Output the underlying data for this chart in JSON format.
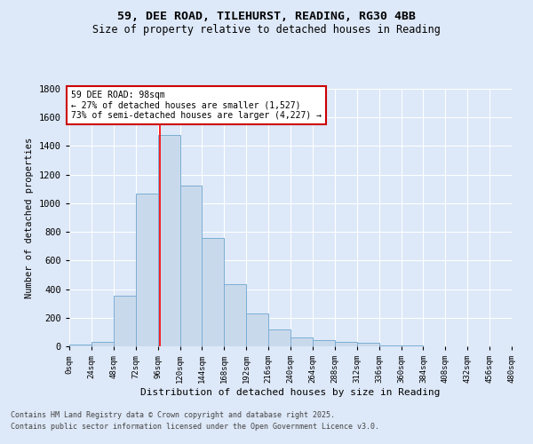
{
  "title_line1": "59, DEE ROAD, TILEHURST, READING, RG30 4BB",
  "title_line2": "Size of property relative to detached houses in Reading",
  "xlabel": "Distribution of detached houses by size in Reading",
  "ylabel": "Number of detached properties",
  "bar_values": [
    10,
    30,
    355,
    1070,
    1480,
    1125,
    755,
    435,
    228,
    120,
    60,
    45,
    28,
    22,
    8,
    5,
    3,
    2,
    2,
    1
  ],
  "bin_edges": [
    0,
    24,
    48,
    72,
    96,
    120,
    144,
    168,
    192,
    216,
    240,
    264,
    288,
    312,
    336,
    360,
    384,
    408,
    432,
    456,
    480
  ],
  "bar_color": "#c9d9ec",
  "bar_edge_color": "#7bafd4",
  "background_color": "#dde8f8",
  "plot_bg_color": "#dde8f8",
  "grid_color": "#ffffff",
  "red_line_x": 98,
  "annotation_text": "59 DEE ROAD: 98sqm\n← 27% of detached houses are smaller (1,527)\n73% of semi-detached houses are larger (4,227) →",
  "annotation_box_color": "#ffffff",
  "annotation_box_edge_color": "#cc0000",
  "ylim": [
    0,
    1800
  ],
  "yticks": [
    0,
    200,
    400,
    600,
    800,
    1000,
    1200,
    1400,
    1600,
    1800
  ],
  "xtick_labels": [
    "0sqm",
    "24sqm",
    "48sqm",
    "72sqm",
    "96sqm",
    "120sqm",
    "144sqm",
    "168sqm",
    "192sqm",
    "216sqm",
    "240sqm",
    "264sqm",
    "288sqm",
    "312sqm",
    "336sqm",
    "360sqm",
    "384sqm",
    "408sqm",
    "432sqm",
    "456sqm",
    "480sqm"
  ],
  "footnote1": "Contains HM Land Registry data © Crown copyright and database right 2025.",
  "footnote2": "Contains public sector information licensed under the Open Government Licence v3.0."
}
